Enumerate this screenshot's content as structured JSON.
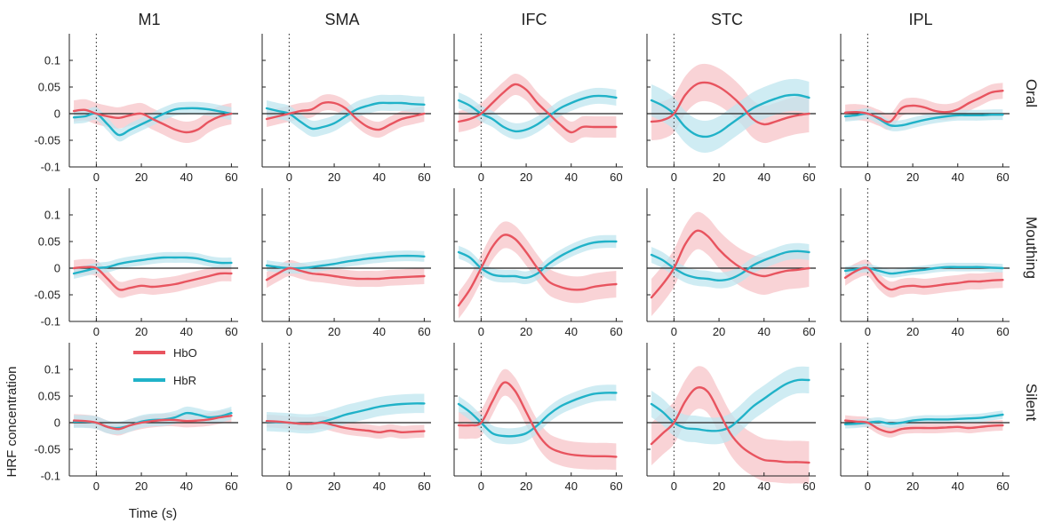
{
  "chart_data": {
    "type": "line",
    "ylabel": "HRF concentration",
    "xlabel": "Time (s)",
    "columns": [
      "M1",
      "SMA",
      "IFC",
      "STC",
      "IPL"
    ],
    "rows": [
      "Oral",
      "Mouthing",
      "Silent"
    ],
    "xlim": [
      -12,
      63
    ],
    "ylim": [
      -0.1,
      0.15
    ],
    "x_ticks": [
      0,
      20,
      40,
      60
    ],
    "y_ticks": [
      -0.1,
      -0.05,
      0,
      0.05,
      0.1
    ],
    "y_tick_labels": [
      "-0.1",
      "-0.05",
      "0",
      "0.05",
      "0.1"
    ],
    "stimulus_onset": 0,
    "legend": {
      "position": "inside M1 Silent, top-left",
      "entries": [
        "HbO",
        "HbR"
      ]
    },
    "colors": {
      "HbO": "#e8545f",
      "HbO_band": "#f7c4c8",
      "HbR": "#20b2c8",
      "HbR_band": "#bfe6ef"
    },
    "x": [
      -10,
      -5,
      0,
      5,
      10,
      15,
      20,
      25,
      30,
      35,
      40,
      45,
      50,
      55,
      60
    ],
    "panels": {
      "Oral": {
        "M1": {
          "HbO": [
            0.005,
            0.007,
            0,
            -0.005,
            -0.008,
            -0.003,
            0,
            -0.01,
            -0.02,
            -0.03,
            -0.035,
            -0.03,
            -0.015,
            -0.005,
            0
          ],
          "HbO_err": 0.02,
          "HbR": [
            -0.007,
            -0.005,
            0,
            -0.02,
            -0.04,
            -0.03,
            -0.02,
            -0.01,
            0,
            0.008,
            0.01,
            0.01,
            0.008,
            0.004,
            0
          ],
          "HbR_err": 0.012
        },
        "SMA": {
          "HbO": [
            -0.01,
            -0.005,
            0,
            0.005,
            0.008,
            0.02,
            0.02,
            0.01,
            -0.01,
            -0.025,
            -0.03,
            -0.02,
            -0.01,
            -0.005,
            0
          ],
          "HbO_err": 0.015,
          "HbR": [
            0.01,
            0.005,
            0,
            -0.015,
            -0.028,
            -0.025,
            -0.018,
            -0.005,
            0.008,
            0.015,
            0.02,
            0.02,
            0.02,
            0.018,
            0.017
          ],
          "HbR_err": 0.015
        },
        "IFC": {
          "HbO": [
            -0.015,
            -0.01,
            0,
            0.02,
            0.04,
            0.055,
            0.045,
            0.02,
            0,
            -0.02,
            -0.035,
            -0.025,
            -0.025,
            -0.025,
            -0.025
          ],
          "HbO_err": 0.02,
          "HbR": [
            0.025,
            0.015,
            0,
            -0.01,
            -0.025,
            -0.033,
            -0.03,
            -0.02,
            -0.005,
            0.01,
            0.02,
            0.028,
            0.033,
            0.033,
            0.03
          ],
          "HbR_err": 0.015
        },
        "STC": {
          "HbO": [
            -0.015,
            -0.012,
            0,
            0.035,
            0.055,
            0.058,
            0.05,
            0.035,
            0.015,
            -0.01,
            -0.02,
            -0.015,
            -0.008,
            -0.003,
            0
          ],
          "HbO_err": 0.035,
          "HbR": [
            0.025,
            0.015,
            0,
            -0.025,
            -0.04,
            -0.043,
            -0.035,
            -0.02,
            -0.005,
            0.01,
            0.02,
            0.028,
            0.034,
            0.035,
            0.03
          ],
          "HbR_err": 0.03
        },
        "IPL": {
          "HbO": [
            0.002,
            0.003,
            0,
            -0.008,
            -0.015,
            0.01,
            0.015,
            0.012,
            0.005,
            0.003,
            0.008,
            0.02,
            0.03,
            0.04,
            0.043
          ],
          "HbO_err": 0.015,
          "HbR": [
            -0.005,
            -0.003,
            0,
            -0.01,
            -0.022,
            -0.022,
            -0.017,
            -0.012,
            -0.008,
            -0.005,
            -0.003,
            -0.003,
            -0.003,
            -0.002,
            -0.002
          ],
          "HbR_err": 0.01
        }
      },
      "Mouthing": {
        "M1": {
          "HbO": [
            0,
            0.002,
            0,
            -0.02,
            -0.04,
            -0.037,
            -0.033,
            -0.035,
            -0.033,
            -0.03,
            -0.025,
            -0.02,
            -0.015,
            -0.01,
            -0.01
          ],
          "HbO_err": 0.015,
          "HbR": [
            -0.01,
            -0.005,
            0,
            0.002,
            0.008,
            0.012,
            0.015,
            0.018,
            0.02,
            0.02,
            0.02,
            0.018,
            0.013,
            0.01,
            0.01
          ],
          "HbR_err": 0.01
        },
        "SMA": {
          "HbO": [
            -0.022,
            -0.01,
            0,
            -0.005,
            -0.01,
            -0.012,
            -0.015,
            -0.018,
            -0.02,
            -0.02,
            -0.02,
            -0.018,
            -0.017,
            -0.016,
            -0.015
          ],
          "HbO_err": 0.015,
          "HbR": [
            0.005,
            0.002,
            0,
            0,
            0.002,
            0.005,
            0.008,
            0.012,
            0.015,
            0.018,
            0.02,
            0.022,
            0.023,
            0.023,
            0.022
          ],
          "HbR_err": 0.01
        },
        "IFC": {
          "HbO": [
            -0.07,
            -0.04,
            0,
            0.04,
            0.062,
            0.055,
            0.03,
            0,
            -0.025,
            -0.035,
            -0.04,
            -0.04,
            -0.035,
            -0.032,
            -0.03
          ],
          "HbO_err": 0.025,
          "HbR": [
            0.03,
            0.02,
            0,
            -0.012,
            -0.015,
            -0.015,
            -0.018,
            -0.01,
            0.008,
            0.022,
            0.033,
            0.042,
            0.048,
            0.05,
            0.05
          ],
          "HbR_err": 0.012
        },
        "STC": {
          "HbO": [
            -0.055,
            -0.03,
            0,
            0.045,
            0.07,
            0.06,
            0.035,
            0.015,
            0,
            -0.01,
            -0.015,
            -0.01,
            -0.005,
            -0.003,
            0
          ],
          "HbO_err": 0.035,
          "HbR": [
            0.025,
            0.015,
            0,
            -0.012,
            -0.018,
            -0.02,
            -0.023,
            -0.02,
            -0.01,
            0.005,
            0.015,
            0.023,
            0.03,
            0.032,
            0.03
          ],
          "HbR_err": 0.015
        },
        "IPL": {
          "HbO": [
            -0.018,
            -0.005,
            0,
            -0.025,
            -0.04,
            -0.035,
            -0.033,
            -0.035,
            -0.033,
            -0.03,
            -0.028,
            -0.025,
            -0.025,
            -0.023,
            -0.022
          ],
          "HbO_err": 0.015,
          "HbR": [
            -0.005,
            -0.002,
            0,
            -0.005,
            -0.01,
            -0.008,
            -0.005,
            -0.003,
            0,
            0.002,
            0.002,
            0.002,
            0.002,
            0.001,
            0
          ],
          "HbR_err": 0.008
        }
      },
      "Silent": {
        "M1": {
          "HbO": [
            0.004,
            0.003,
            0,
            -0.008,
            -0.012,
            -0.005,
            0,
            0.003,
            0.005,
            0.005,
            0.003,
            0.004,
            0.006,
            0.01,
            0.013
          ],
          "HbO_err": 0.012,
          "HbR": [
            0.002,
            0.002,
            0,
            -0.008,
            -0.01,
            -0.005,
            0.002,
            0.005,
            0.006,
            0.01,
            0.018,
            0.015,
            0.01,
            0.012,
            0.018
          ],
          "HbR_err": 0.012
        },
        "SMA": {
          "HbO": [
            0.003,
            0.002,
            0,
            -0.002,
            -0.002,
            0,
            -0.005,
            -0.01,
            -0.013,
            -0.015,
            -0.018,
            -0.015,
            -0.018,
            -0.017,
            -0.016
          ],
          "HbO_err": 0.012,
          "HbR": [
            0.002,
            0.001,
            0,
            -0.002,
            -0.002,
            0.002,
            0.008,
            0.015,
            0.02,
            0.025,
            0.03,
            0.033,
            0.035,
            0.036,
            0.036
          ],
          "HbR_err": 0.018
        },
        "IFC": {
          "HbO": [
            -0.005,
            -0.005,
            0,
            0.04,
            0.075,
            0.06,
            0.02,
            -0.02,
            -0.045,
            -0.055,
            -0.06,
            -0.062,
            -0.063,
            -0.063,
            -0.064
          ],
          "HbO_err": 0.025,
          "HbR": [
            0.035,
            0.02,
            0,
            -0.02,
            -0.025,
            -0.025,
            -0.02,
            -0.005,
            0.015,
            0.03,
            0.04,
            0.048,
            0.054,
            0.056,
            0.056
          ],
          "HbR_err": 0.015
        },
        "STC": {
          "HbO": [
            -0.04,
            -0.02,
            0,
            0.04,
            0.065,
            0.058,
            0.02,
            -0.02,
            -0.045,
            -0.06,
            -0.07,
            -0.072,
            -0.074,
            -0.074,
            -0.075
          ],
          "HbO_err": 0.04,
          "HbR": [
            0.035,
            0.02,
            0,
            -0.01,
            -0.012,
            -0.015,
            -0.015,
            -0.008,
            0.01,
            0.03,
            0.045,
            0.06,
            0.073,
            0.08,
            0.08
          ],
          "HbR_err": 0.025
        },
        "IPL": {
          "HbO": [
            0.004,
            0.002,
            0,
            -0.012,
            -0.018,
            -0.012,
            -0.01,
            -0.01,
            -0.01,
            -0.009,
            -0.008,
            -0.01,
            -0.008,
            -0.006,
            -0.005
          ],
          "HbO_err": 0.01,
          "HbR": [
            -0.003,
            -0.002,
            0,
            0.002,
            -0.002,
            0,
            0.004,
            0.006,
            0.006,
            0.006,
            0.007,
            0.008,
            0.009,
            0.012,
            0.015
          ],
          "HbR_err": 0.008
        }
      }
    }
  }
}
